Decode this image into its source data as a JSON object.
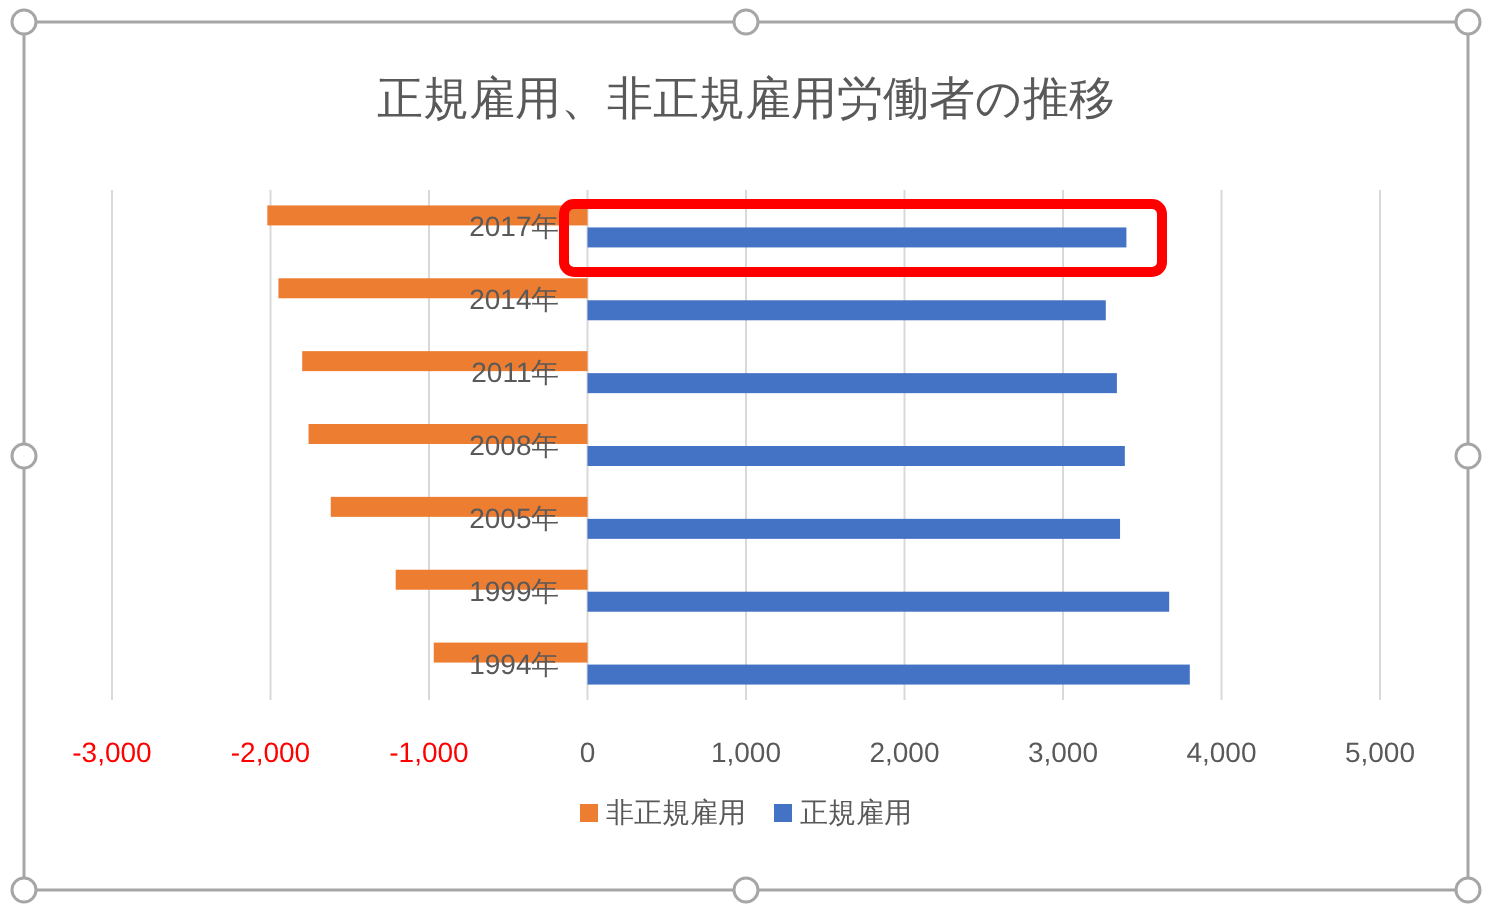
{
  "chart_data": {
    "type": "bar",
    "orientation": "horizontal",
    "title": "正規雇用、非正規雇用労働者の推移",
    "categories": [
      "2017年",
      "2014年",
      "2011年",
      "2008年",
      "2005年",
      "1999年",
      "1994年"
    ],
    "series": [
      {
        "name": "非正規雇用",
        "color": "#ed7d31",
        "values": [
          -2020,
          -1950,
          -1800,
          -1760,
          -1620,
          -1210,
          -970
        ]
      },
      {
        "name": "正規雇用",
        "color": "#4472c4",
        "values": [
          3400,
          3270,
          3340,
          3390,
          3360,
          3670,
          3800
        ]
      }
    ],
    "xlim": [
      -3000,
      5000
    ],
    "xticks": [
      {
        "value": -3000,
        "label": "-3,000"
      },
      {
        "value": -2000,
        "label": "-2,000"
      },
      {
        "value": -1000,
        "label": "-1,000"
      },
      0,
      {
        "value": 1000,
        "label": "1,000"
      },
      {
        "value": 2000,
        "label": "2,000"
      },
      {
        "value": 3000,
        "label": "3,000"
      },
      {
        "value": 4000,
        "label": "4,000"
      },
      {
        "value": 5000,
        "label": "5,000"
      }
    ],
    "grid": "x",
    "legend": "bottom"
  }
}
